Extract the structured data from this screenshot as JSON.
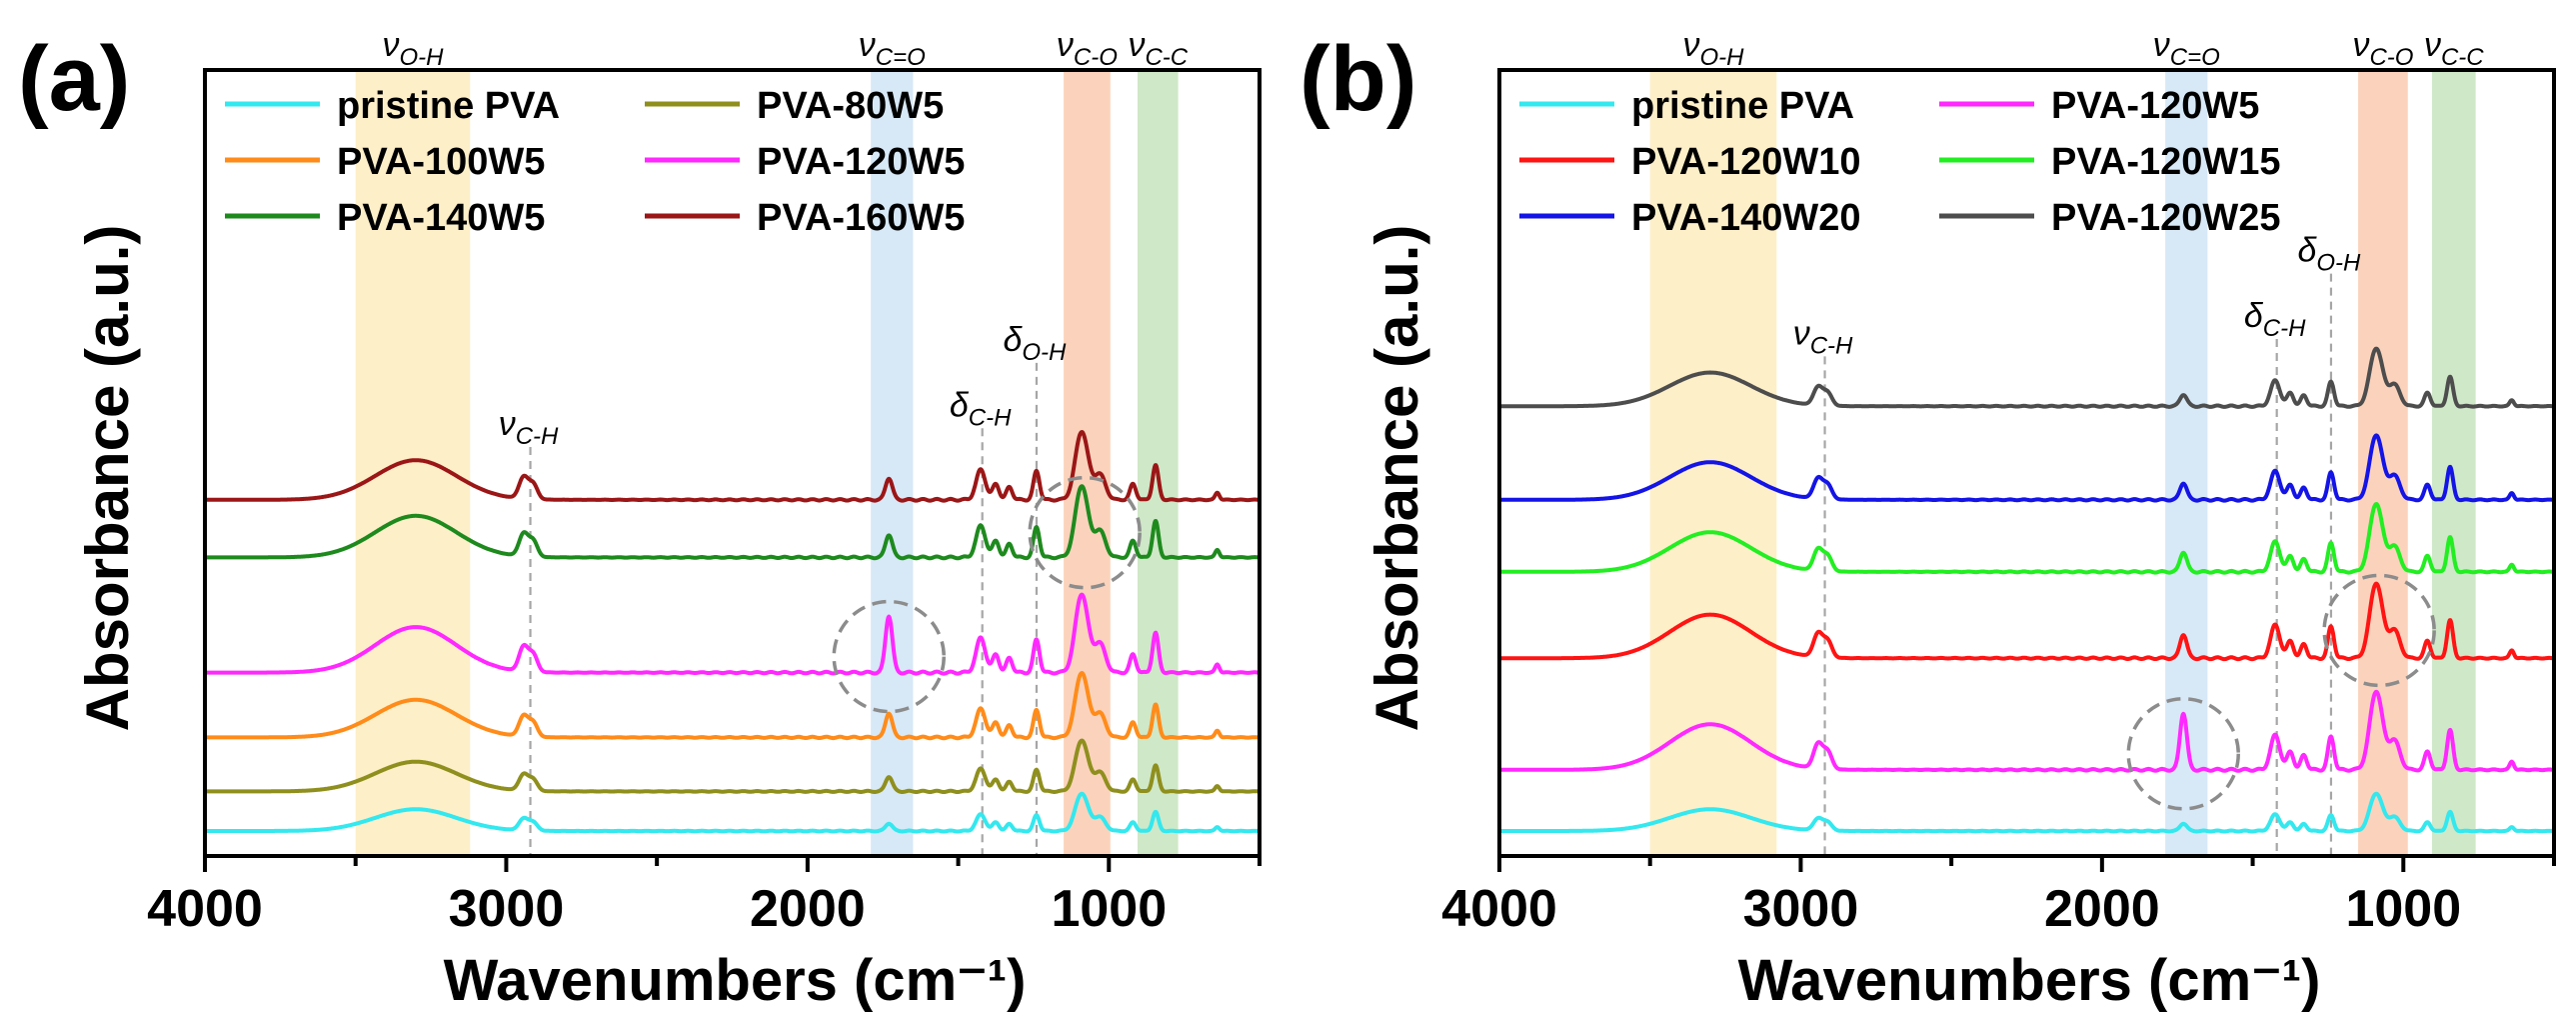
{
  "panels": [
    {
      "id": "a",
      "label": "(a)",
      "chart_data": {
        "type": "line",
        "xlabel": "Wavenumbers (cm⁻¹)",
        "ylabel": "Absorbance (a.u.)",
        "xlim": [
          4000,
          500
        ],
        "xticks": [
          4000,
          3000,
          2000,
          1000
        ],
        "legend": [
          "pristine PVA",
          "PVA-80W5",
          "PVA-100W5",
          "PVA-120W5",
          "PVA-140W5",
          "PVA-160W5"
        ],
        "series": [
          {
            "name": "pristine PVA",
            "color": "#33e8ee",
            "offset": 0.0,
            "scale": 0.55,
            "carbonyl": 0.35
          },
          {
            "name": "PVA-80W5",
            "color": "#8f8f1e",
            "offset": 0.55,
            "scale": 0.75,
            "carbonyl": 0.5
          },
          {
            "name": "PVA-100W5",
            "color": "#ff8c1a",
            "offset": 1.3,
            "scale": 0.95,
            "carbonyl": 0.65
          },
          {
            "name": "PVA-120W5",
            "color": "#ff29ff",
            "offset": 2.2,
            "scale": 1.15,
            "carbonyl": 1.25
          },
          {
            "name": "PVA-140W5",
            "color": "#1e8a1e",
            "offset": 3.8,
            "scale": 1.05,
            "carbonyl": 0.55
          },
          {
            "name": "PVA-160W5",
            "color": "#9b1616",
            "offset": 4.6,
            "scale": 1.0,
            "carbonyl": 0.55
          }
        ],
        "bands": [
          {
            "label": "ν",
            "sub": "O-H",
            "from": 3500,
            "to": 3120,
            "color": "#fdefc8"
          },
          {
            "label": "ν",
            "sub": "C=O",
            "from": 1790,
            "to": 1650,
            "color": "#d7e8f7"
          },
          {
            "label": "ν",
            "sub": "C-O",
            "from": 1150,
            "to": 995,
            "color": "#fbd3bc"
          },
          {
            "label": "ν",
            "sub": "C-C",
            "from": 905,
            "to": 770,
            "color": "#cfe8c8"
          }
        ],
        "markers": [
          {
            "label": "ν",
            "sub": "C-H",
            "x": 2920
          },
          {
            "label": "δ",
            "sub": "C-H",
            "x": 1420
          },
          {
            "label": "δ",
            "sub": "O-H",
            "x": 1240
          }
        ],
        "circles": [
          {
            "x": 1730,
            "series": "PVA-120W5"
          },
          {
            "x": 1080,
            "series": "PVA-140W5"
          }
        ]
      }
    },
    {
      "id": "b",
      "label": "(b)",
      "chart_data": {
        "type": "line",
        "xlabel": "Wavenumbers (cm⁻¹)",
        "ylabel": "Absorbance (a.u.)",
        "xlim": [
          4000,
          500
        ],
        "xticks": [
          4000,
          3000,
          2000,
          1000
        ],
        "legend": [
          "pristine PVA",
          "PVA-120W5",
          "PVA-120W10",
          "PVA-120W15",
          "PVA-140W20",
          "PVA-120W25"
        ],
        "series": [
          {
            "name": "pristine PVA",
            "color": "#33e8ee",
            "offset": 0.0,
            "scale": 0.55,
            "carbonyl": 0.35
          },
          {
            "name": "PVA-120W5",
            "color": "#ff29ff",
            "offset": 0.85,
            "scale": 1.15,
            "carbonyl": 1.25
          },
          {
            "name": "PVA-120W10",
            "color": "#ff1414",
            "offset": 2.4,
            "scale": 1.1,
            "carbonyl": 0.55
          },
          {
            "name": "PVA-120W15",
            "color": "#22ee22",
            "offset": 3.6,
            "scale": 1.0,
            "carbonyl": 0.5
          },
          {
            "name": "PVA-140W20",
            "color": "#1414e6",
            "offset": 4.6,
            "scale": 0.95,
            "carbonyl": 0.45
          },
          {
            "name": "PVA-120W25",
            "color": "#4d4d4d",
            "offset": 5.9,
            "scale": 0.85,
            "carbonyl": 0.35
          }
        ],
        "bands": [
          {
            "label": "ν",
            "sub": "O-H",
            "from": 3500,
            "to": 3080,
            "color": "#fdefc8"
          },
          {
            "label": "ν",
            "sub": "C=O",
            "from": 1790,
            "to": 1650,
            "color": "#d7e8f7"
          },
          {
            "label": "ν",
            "sub": "C-O",
            "from": 1150,
            "to": 985,
            "color": "#fbd3bc"
          },
          {
            "label": "ν",
            "sub": "C-C",
            "from": 905,
            "to": 760,
            "color": "#cfe8c8"
          }
        ],
        "markers": [
          {
            "label": "ν",
            "sub": "C-H",
            "x": 2920
          },
          {
            "label": "δ",
            "sub": "C-H",
            "x": 1420
          },
          {
            "label": "δ",
            "sub": "O-H",
            "x": 1240
          }
        ],
        "circles": [
          {
            "x": 1730,
            "series": "PVA-120W5"
          },
          {
            "x": 1080,
            "series": "PVA-120W10"
          }
        ]
      }
    }
  ]
}
